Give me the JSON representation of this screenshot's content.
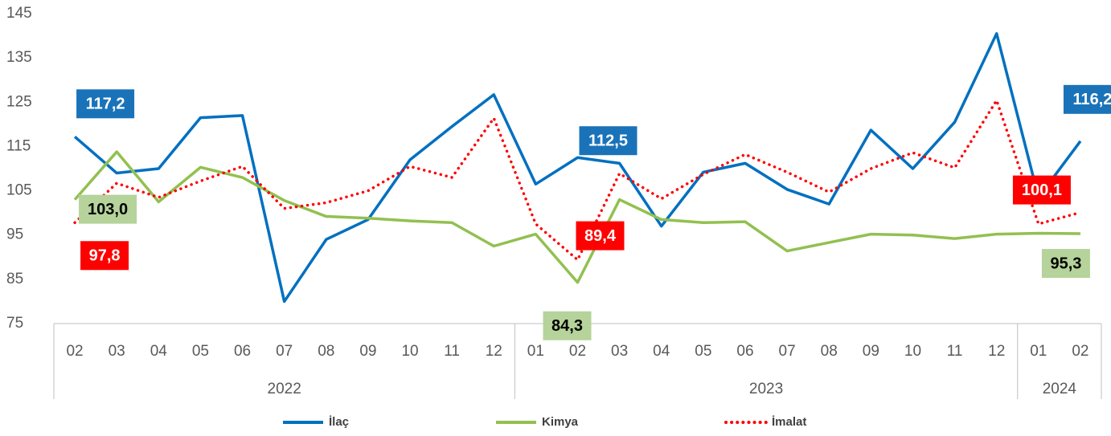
{
  "chart_data": {
    "type": "line",
    "categories": [
      "02",
      "03",
      "04",
      "05",
      "06",
      "07",
      "08",
      "09",
      "10",
      "11",
      "12",
      "01",
      "02",
      "03",
      "04",
      "05",
      "06",
      "07",
      "08",
      "09",
      "10",
      "11",
      "12",
      "01",
      "02"
    ],
    "category_groups": [
      {
        "label": "2022",
        "size": 11
      },
      {
        "label": "2023",
        "size": 12
      },
      {
        "label": "2024",
        "size": 2
      }
    ],
    "ylim": [
      75,
      145
    ],
    "yticks": [
      75,
      85,
      95,
      105,
      115,
      125,
      135,
      145
    ],
    "grid": false,
    "legend": "bottom",
    "series": [
      {
        "name": "İlaç",
        "color": "#0070c0",
        "style": "solid",
        "values": [
          117.2,
          109.0,
          110.0,
          121.5,
          122.0,
          80.0,
          94.0,
          98.5,
          112.0,
          119.5,
          126.7,
          106.5,
          112.5,
          111.2,
          97.0,
          109.2,
          111.2,
          105.3,
          102.0,
          118.7,
          110.0,
          120.5,
          140.5,
          103.5,
          116.2
        ],
        "value_labels": [
          "117,2",
          null,
          null,
          null,
          null,
          null,
          null,
          null,
          null,
          null,
          null,
          null,
          "112,5",
          null,
          null,
          null,
          null,
          null,
          null,
          null,
          null,
          null,
          null,
          null,
          "116,2"
        ]
      },
      {
        "name": "Kimya",
        "color": "#92c050",
        "style": "solid",
        "values": [
          103.0,
          113.8,
          102.5,
          110.3,
          108.0,
          102.8,
          99.2,
          98.8,
          98.2,
          97.8,
          92.5,
          95.2,
          84.3,
          103.0,
          98.5,
          97.8,
          98.0,
          91.4,
          93.3,
          95.2,
          95.0,
          94.2,
          95.2,
          95.4,
          95.3
        ],
        "value_labels": [
          "103,0",
          null,
          null,
          null,
          null,
          null,
          null,
          null,
          null,
          null,
          null,
          null,
          "84,3",
          null,
          null,
          null,
          null,
          null,
          null,
          null,
          null,
          null,
          null,
          null,
          "95,3"
        ]
      },
      {
        "name": "İmalat",
        "color": "#ff0000",
        "style": "dotted",
        "values": [
          97.8,
          106.7,
          103.5,
          107.2,
          110.5,
          101.0,
          102.3,
          105.0,
          110.5,
          108.0,
          121.4,
          97.5,
          89.4,
          108.9,
          103.2,
          108.7,
          113.2,
          109.2,
          104.7,
          110.0,
          113.6,
          110.2,
          125.4,
          97.5,
          100.1
        ],
        "value_labels": [
          "97,8",
          null,
          null,
          null,
          null,
          null,
          null,
          null,
          null,
          null,
          null,
          null,
          "89,4",
          null,
          null,
          null,
          null,
          null,
          null,
          null,
          null,
          null,
          null,
          null,
          "100,1"
        ]
      }
    ]
  }
}
